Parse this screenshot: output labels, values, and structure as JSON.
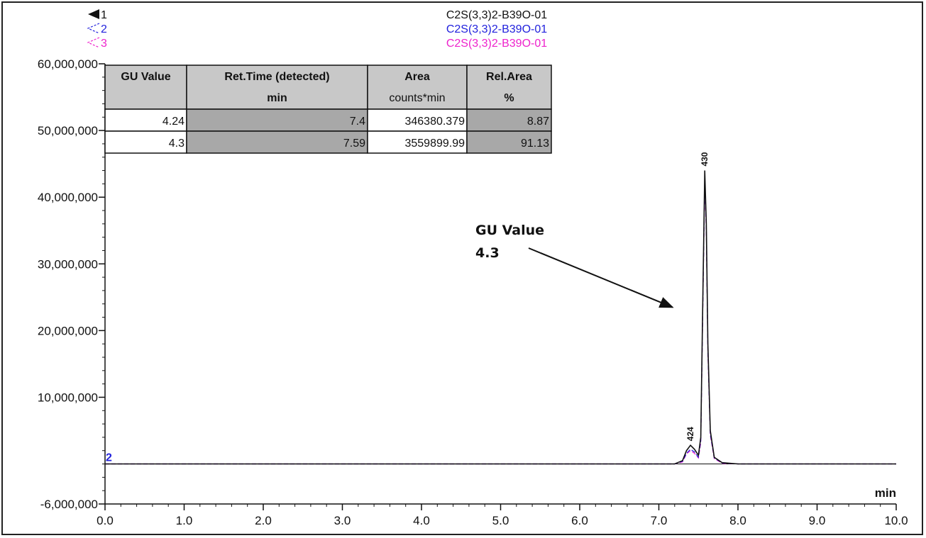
{
  "chart_data": {
    "type": "line",
    "xlabel": "min",
    "ylabel": "",
    "xlim": [
      0.0,
      10.0
    ],
    "ylim": [
      -6000000,
      60000000
    ],
    "x_ticks": [
      "0.0",
      "1.0",
      "2.0",
      "3.0",
      "4.0",
      "5.0",
      "6.0",
      "7.0",
      "8.0",
      "9.0",
      "10.0"
    ],
    "y_ticks": [
      {
        "value": 60000000,
        "label": "60,000,000"
      },
      {
        "value": 50000000,
        "label": "50,000,000"
      },
      {
        "value": 40000000,
        "label": "40,000,000"
      },
      {
        "value": 30000000,
        "label": "30,000,000"
      },
      {
        "value": 20000000,
        "label": "20,000,000"
      },
      {
        "value": 10000000,
        "label": "10,000,000"
      },
      {
        "value": -6000000,
        "label": "-6,000,000"
      }
    ],
    "legend": [
      {
        "marker": "1",
        "name": "C2S(3,3)2-B39O-01",
        "color": "#111111"
      },
      {
        "marker": "2",
        "name": "C2S(3,3)2-B39O-01",
        "color": "#2222dd"
      },
      {
        "marker": "3",
        "name": "C2S(3,3)2-B39O-01",
        "color": "#ee22cc"
      }
    ],
    "series": [
      {
        "name": "C2S(3,3)2-B39O-01",
        "color": "#111111",
        "x": [
          0.0,
          7.2,
          7.3,
          7.35,
          7.4,
          7.45,
          7.5,
          7.53,
          7.55,
          7.58,
          7.6,
          7.62,
          7.65,
          7.7,
          7.8,
          8.0,
          10.0
        ],
        "y": [
          0,
          0,
          500000,
          2000000,
          2800000,
          2200000,
          1300000,
          4000000,
          20000000,
          44000000,
          36000000,
          18000000,
          5000000,
          1000000,
          200000,
          0,
          0
        ]
      },
      {
        "name": "C2S(3,3)2-B39O-01",
        "color": "#2222dd",
        "x": [
          0.0,
          7.2,
          7.3,
          7.35,
          7.4,
          7.45,
          7.5,
          7.53,
          7.55,
          7.58,
          7.6,
          7.62,
          7.65,
          7.7,
          7.8,
          8.0,
          10.0
        ],
        "y": [
          0,
          0,
          400000,
          1600000,
          2200000,
          1800000,
          1000000,
          3500000,
          19000000,
          43000000,
          35000000,
          17000000,
          4500000,
          900000,
          150000,
          0,
          0
        ]
      },
      {
        "name": "C2S(3,3)2-B39O-01",
        "color": "#ee22cc",
        "x": [
          0.0,
          7.2,
          7.3,
          7.35,
          7.4,
          7.45,
          7.5,
          7.53,
          7.55,
          7.58,
          7.6,
          7.62,
          7.65,
          7.7,
          7.8,
          8.0,
          10.0
        ],
        "y": [
          0,
          0,
          300000,
          1500000,
          2000000,
          1600000,
          900000,
          3200000,
          18500000,
          42500000,
          34500000,
          16500000,
          4300000,
          800000,
          100000,
          0,
          0
        ]
      }
    ],
    "peak_labels": [
      {
        "text": "424",
        "x": 7.4,
        "y": 2800000
      },
      {
        "text": "430",
        "x": 7.58,
        "y": 44000000
      }
    ],
    "annotation": {
      "line1": "GU Value",
      "line2": "4.3",
      "arrow_to": {
        "x": 7.2,
        "y": 23500000
      }
    },
    "trace_label": "2",
    "table": {
      "headers": [
        {
          "top": "GU Value",
          "bottom": ""
        },
        {
          "top": "Ret.Time (detected)",
          "bottom": "min"
        },
        {
          "top": "Area",
          "bottom": "counts*min"
        },
        {
          "top": "Rel.Area",
          "bottom": "%"
        }
      ],
      "rows": [
        [
          "4.24",
          "7.4",
          "346380.379",
          "8.87"
        ],
        [
          "4.3",
          "7.59",
          "3559899.99",
          "91.13"
        ]
      ]
    }
  }
}
